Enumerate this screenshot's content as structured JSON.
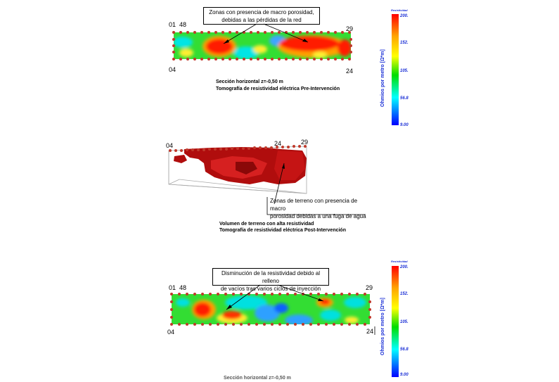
{
  "panel_top": {
    "callout": "Zonas con presencia de macro porosidad,\ndebidas a las pérdidas de la red",
    "electrode_labels": {
      "top_left_a": "01",
      "top_left_b": "48",
      "top_right": "29",
      "bottom_left": "04",
      "bottom_right": "24"
    },
    "caption_line1": "Sección horizontal z=-0,50 m",
    "caption_line2": "Tomografía de resistividad eléctrica Pre-Intervención"
  },
  "panel_middle": {
    "electrode_labels": {
      "left": "04",
      "mid": "24",
      "right": "29"
    },
    "callout": "Zonas de terreno con presencia de macro\nporosidad debidas a una fuga de agua",
    "caption_line1": "Volumen de terreno con alta resistividad",
    "caption_line2": "Tomografía de resistividad eléctrica Post-Intervención"
  },
  "panel_bottom": {
    "callout": "Disminución de la resistividad debido al relleno\nde vacíos tras varios ciclos de inyección",
    "electrode_labels": {
      "top_left_a": "01",
      "top_left_b": "48",
      "top_right": "29",
      "bottom_left": "04",
      "bottom_right": "24"
    },
    "caption_line1": "Sección horizontal z=-0,50 m"
  },
  "color_scale": {
    "title": "Resistividad",
    "axis_label": "Ohmios por metro [Ω*m]",
    "ticks": [
      "200.",
      "152.",
      "105.",
      "56.8",
      "9.00"
    ],
    "colors": [
      "#ff0000",
      "#ffa500",
      "#ffff00",
      "#00dd00",
      "#00ffff",
      "#0000ff"
    ]
  }
}
